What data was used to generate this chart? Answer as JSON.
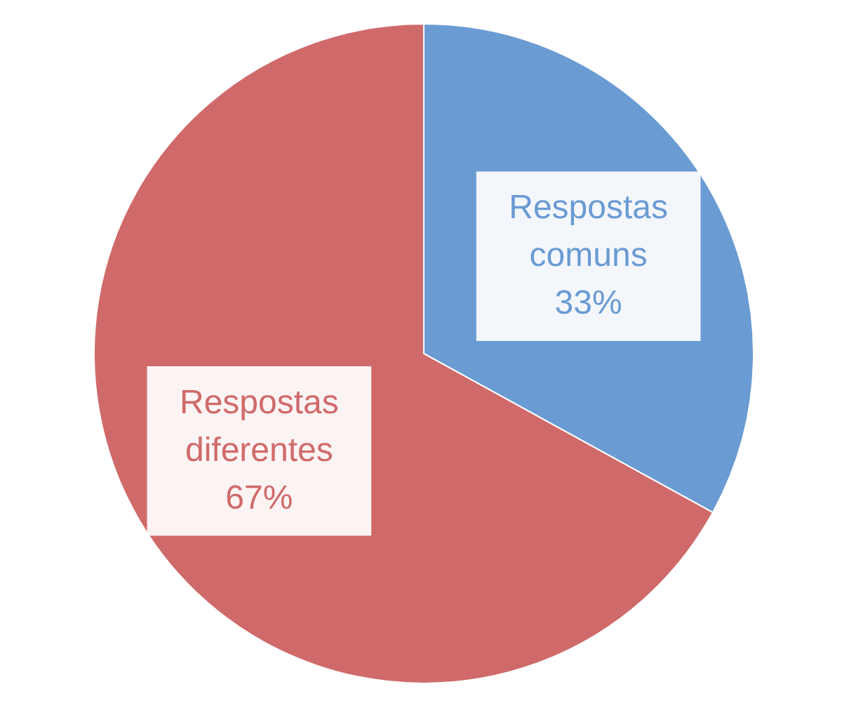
{
  "chart_data": {
    "type": "pie",
    "categories": [
      "Respostas comuns",
      "Respostas diferentes"
    ],
    "values": [
      33,
      67
    ],
    "value_labels": [
      "33%",
      "67%"
    ],
    "colors": [
      "#6a9bd3",
      "#d06a6a"
    ],
    "legend": false
  }
}
